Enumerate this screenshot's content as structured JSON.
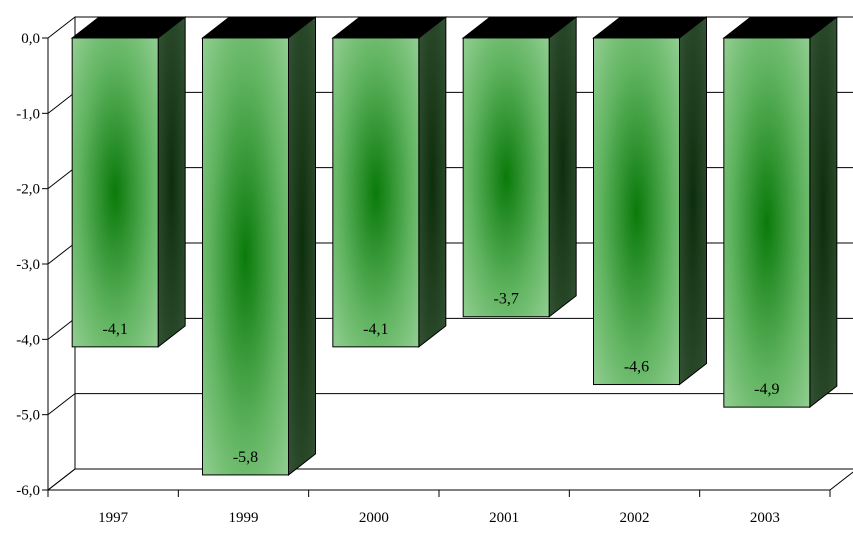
{
  "chart_data": {
    "type": "bar",
    "style": "3d-column",
    "categories": [
      "1997",
      "1999",
      "2000",
      "2001",
      "2002",
      "2003"
    ],
    "series": [
      {
        "values": [
          -4.1,
          -5.8,
          -4.1,
          -3.7,
          -4.6,
          -4.9
        ]
      }
    ],
    "data_labels": [
      "-4,1",
      "-5,8",
      "-4,1",
      "-3,7",
      "-4,6",
      "-4,9"
    ],
    "y_ticks": [
      0,
      -1,
      -2,
      -3,
      -4,
      -5,
      -6
    ],
    "y_tick_labels": [
      "0,0",
      "-1,0",
      "-2,0",
      "-3,0",
      "-4,0",
      "-5,0",
      "-6,0"
    ],
    "ylim": [
      -6,
      0
    ],
    "title": "",
    "xlabel": "",
    "ylabel": "",
    "grid": true,
    "legend": "none",
    "colors": {
      "bar_front_light": "#8cc98c",
      "bar_front_dark": "#0a7a0a",
      "bar_side": "#2f4a2f",
      "bar_top": "#000000",
      "grid": "#000000"
    }
  }
}
